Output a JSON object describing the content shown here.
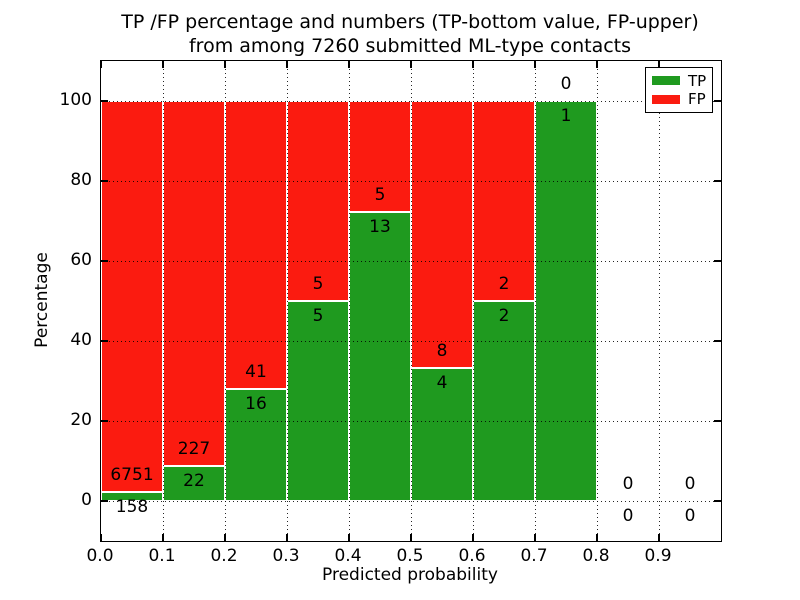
{
  "chart_data": {
    "type": "bar",
    "stacked": true,
    "title_lines": [
      "TP /FP percentage and numbers (TP-bottom value, FP-upper)",
      "from among 7260 submitted ML-type contacts"
    ],
    "xlabel": "Predicted probability",
    "ylabel": "Percentage",
    "xlim": [
      0.0,
      1.0
    ],
    "ylim": [
      -10,
      110
    ],
    "xtick_labels": [
      "0.0",
      "0.1",
      "0.2",
      "0.3",
      "0.4",
      "0.5",
      "0.6",
      "0.7",
      "0.8",
      "0.9"
    ],
    "ytick_values": [
      0,
      20,
      40,
      60,
      80,
      100
    ],
    "grid": true,
    "grid_style": "dotted",
    "colors": {
      "tp": "#1f9a1f",
      "fp": "#fb1b10"
    },
    "legend": {
      "position": "upper right",
      "entries": [
        {
          "label": "TP",
          "color": "#1f9a1f"
        },
        {
          "label": "FP",
          "color": "#fb1b10"
        }
      ]
    },
    "bins": [
      {
        "range": [
          0.0,
          0.1
        ],
        "tp_count": 158,
        "fp_count": 6751,
        "tp_pct": 2.29,
        "fp_pct": 97.71
      },
      {
        "range": [
          0.1,
          0.2
        ],
        "tp_count": 22,
        "fp_count": 227,
        "tp_pct": 8.84,
        "fp_pct": 91.16
      },
      {
        "range": [
          0.2,
          0.3
        ],
        "tp_count": 16,
        "fp_count": 41,
        "tp_pct": 28.07,
        "fp_pct": 71.93
      },
      {
        "range": [
          0.3,
          0.4
        ],
        "tp_count": 5,
        "fp_count": 5,
        "tp_pct": 50.0,
        "fp_pct": 50.0
      },
      {
        "range": [
          0.4,
          0.5
        ],
        "tp_count": 13,
        "fp_count": 5,
        "tp_pct": 72.22,
        "fp_pct": 27.78
      },
      {
        "range": [
          0.5,
          0.6
        ],
        "tp_count": 4,
        "fp_count": 8,
        "tp_pct": 33.33,
        "fp_pct": 66.67
      },
      {
        "range": [
          0.6,
          0.7
        ],
        "tp_count": 2,
        "fp_count": 2,
        "tp_pct": 50.0,
        "fp_pct": 50.0
      },
      {
        "range": [
          0.7,
          0.8
        ],
        "tp_count": 1,
        "fp_count": 0,
        "tp_pct": 100.0,
        "fp_pct": 0.0
      },
      {
        "range": [
          0.8,
          0.9
        ],
        "tp_count": 0,
        "fp_count": 0,
        "tp_pct": 0.0,
        "fp_pct": 0.0
      },
      {
        "range": [
          0.9,
          1.0
        ],
        "tp_count": 0,
        "fp_count": 0,
        "tp_pct": 0.0,
        "fp_pct": 0.0
      }
    ]
  }
}
